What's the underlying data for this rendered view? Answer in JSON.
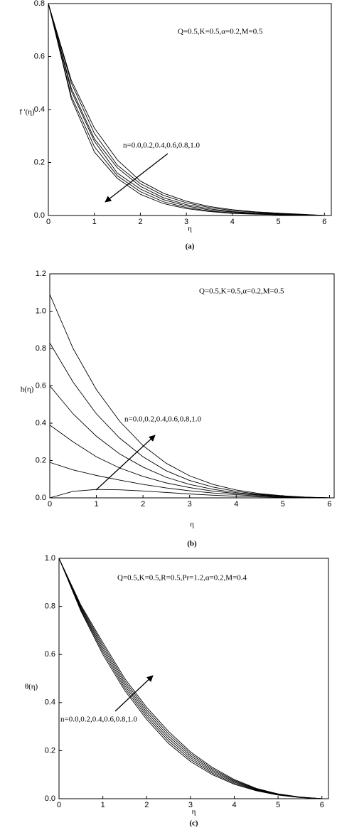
{
  "chart_data": [
    {
      "type": "line",
      "label": "(a)",
      "xlabel": "η",
      "ylabel": "f '(η)",
      "annotations": [
        "Q=0.5,K=0.5,α=0.2,M=0.5",
        "n=0.0,0.2,0.4,0.6,0.8,1.0"
      ],
      "color": "#000000",
      "xlim": [
        0,
        6.15
      ],
      "ylim": [
        0,
        0.8
      ],
      "xticks": [
        0,
        1,
        2,
        3,
        4,
        5,
        6
      ],
      "yticks": [
        {
          "value": 0,
          "label": "0.0"
        },
        0.2,
        0.4,
        0.6,
        0.8
      ],
      "x": [
        0,
        0.5,
        1,
        1.5,
        2,
        2.5,
        3,
        3.5,
        4,
        4.5,
        5,
        5.5,
        6
      ],
      "series": [
        {
          "values": [
            0.8,
            0.51,
            0.33,
            0.21,
            0.13,
            0.084,
            0.054,
            0.034,
            0.022,
            0.014,
            0.009,
            0.005,
            0
          ]
        },
        {
          "values": [
            0.8,
            0.5,
            0.31,
            0.19,
            0.12,
            0.076,
            0.048,
            0.03,
            0.019,
            0.012,
            0.007,
            0.004,
            0
          ]
        },
        {
          "values": [
            0.8,
            0.48,
            0.29,
            0.18,
            0.11,
            0.067,
            0.041,
            0.025,
            0.015,
            0.009,
            0.006,
            0.003,
            0
          ]
        },
        {
          "values": [
            0.8,
            0.47,
            0.28,
            0.16,
            0.1,
            0.06,
            0.036,
            0.021,
            0.013,
            0.008,
            0.005,
            0.002,
            0
          ]
        },
        {
          "values": [
            0.8,
            0.45,
            0.26,
            0.15,
            0.09,
            0.052,
            0.03,
            0.017,
            0.01,
            0.006,
            0.003,
            0.002,
            0
          ]
        },
        {
          "values": [
            0.8,
            0.44,
            0.24,
            0.14,
            0.08,
            0.045,
            0.026,
            0.015,
            0.008,
            0.005,
            0.003,
            0.001,
            0
          ]
        }
      ]
    },
    {
      "type": "line",
      "label": "(b)",
      "xlabel": "η",
      "ylabel": "h(η)",
      "annotations": [
        "Q=0.5,K=0.5,α=0.2,M=0.5",
        "n=0.0,0.2,0.4,0.6,0.8,1.0"
      ],
      "color": "#000000",
      "xlim": [
        0,
        6.1
      ],
      "ylim": [
        0,
        1.2
      ],
      "xticks": [
        0,
        1,
        2,
        3,
        4,
        5,
        6
      ],
      "yticks": [
        {
          "value": 0,
          "label": "0.0"
        },
        0.2,
        0.4,
        0.6,
        0.8,
        {
          "value": 1,
          "label": "1.0"
        },
        1.2
      ],
      "x": [
        0,
        0.5,
        1,
        1.5,
        2,
        2.5,
        3,
        3.5,
        4,
        4.5,
        5,
        5.5,
        6
      ],
      "series": [
        {
          "values": [
            0,
            0.035,
            0.045,
            0.043,
            0.037,
            0.029,
            0.021,
            0.014,
            0.009,
            0.005,
            0.003,
            0.001,
            0
          ]
        },
        {
          "values": [
            0.19,
            0.15,
            0.12,
            0.095,
            0.072,
            0.053,
            0.038,
            0.026,
            0.017,
            0.01,
            0.005,
            0.002,
            0
          ]
        },
        {
          "values": [
            0.39,
            0.3,
            0.22,
            0.16,
            0.115,
            0.08,
            0.055,
            0.036,
            0.023,
            0.014,
            0.007,
            0.003,
            0
          ]
        },
        {
          "values": [
            0.6,
            0.45,
            0.33,
            0.235,
            0.165,
            0.11,
            0.072,
            0.046,
            0.028,
            0.016,
            0.008,
            0.003,
            0
          ]
        },
        {
          "values": [
            0.83,
            0.62,
            0.45,
            0.32,
            0.22,
            0.145,
            0.093,
            0.058,
            0.035,
            0.019,
            0.009,
            0.003,
            0
          ]
        },
        {
          "values": [
            1.09,
            0.8,
            0.58,
            0.41,
            0.28,
            0.185,
            0.118,
            0.072,
            0.042,
            0.023,
            0.011,
            0.004,
            0
          ]
        }
      ]
    },
    {
      "type": "line",
      "label": "(c)",
      "xlabel": "η",
      "ylabel": "θ(η)",
      "annotations": [
        "Q=0.5,K=0.5,R=0.5,Pr=1.2,α=0.2,M=0.4",
        "n=0.0,0.2,0.4,0.6,0.8,1.0"
      ],
      "color": "#000000",
      "xlim": [
        0,
        6.15
      ],
      "ylim": [
        0,
        1
      ],
      "xticks": [
        0,
        1,
        2,
        3,
        4,
        5,
        6
      ],
      "yticks": [
        {
          "value": 0,
          "label": "0.0"
        },
        0.2,
        0.4,
        0.6,
        0.8,
        {
          "value": 1,
          "label": "1.0"
        }
      ],
      "x": [
        0,
        0.5,
        1,
        1.5,
        2,
        2.5,
        3,
        3.5,
        4,
        4.5,
        5,
        5.5,
        6
      ],
      "series": [
        {
          "values": [
            1,
            0.78,
            0.6,
            0.45,
            0.33,
            0.23,
            0.155,
            0.1,
            0.06,
            0.033,
            0.015,
            0.005,
            0
          ]
        },
        {
          "values": [
            1,
            0.785,
            0.61,
            0.46,
            0.34,
            0.24,
            0.163,
            0.106,
            0.064,
            0.035,
            0.016,
            0.005,
            0
          ]
        },
        {
          "values": [
            1,
            0.79,
            0.62,
            0.47,
            0.35,
            0.25,
            0.171,
            0.112,
            0.068,
            0.037,
            0.017,
            0.006,
            0
          ]
        },
        {
          "values": [
            1,
            0.795,
            0.63,
            0.48,
            0.36,
            0.26,
            0.179,
            0.118,
            0.072,
            0.039,
            0.018,
            0.006,
            0
          ]
        },
        {
          "values": [
            1,
            0.8,
            0.64,
            0.49,
            0.37,
            0.27,
            0.187,
            0.124,
            0.076,
            0.041,
            0.019,
            0.006,
            0
          ]
        },
        {
          "values": [
            1,
            0.805,
            0.65,
            0.5,
            0.38,
            0.28,
            0.195,
            0.13,
            0.08,
            0.043,
            0.02,
            0.007,
            0
          ]
        }
      ]
    }
  ]
}
